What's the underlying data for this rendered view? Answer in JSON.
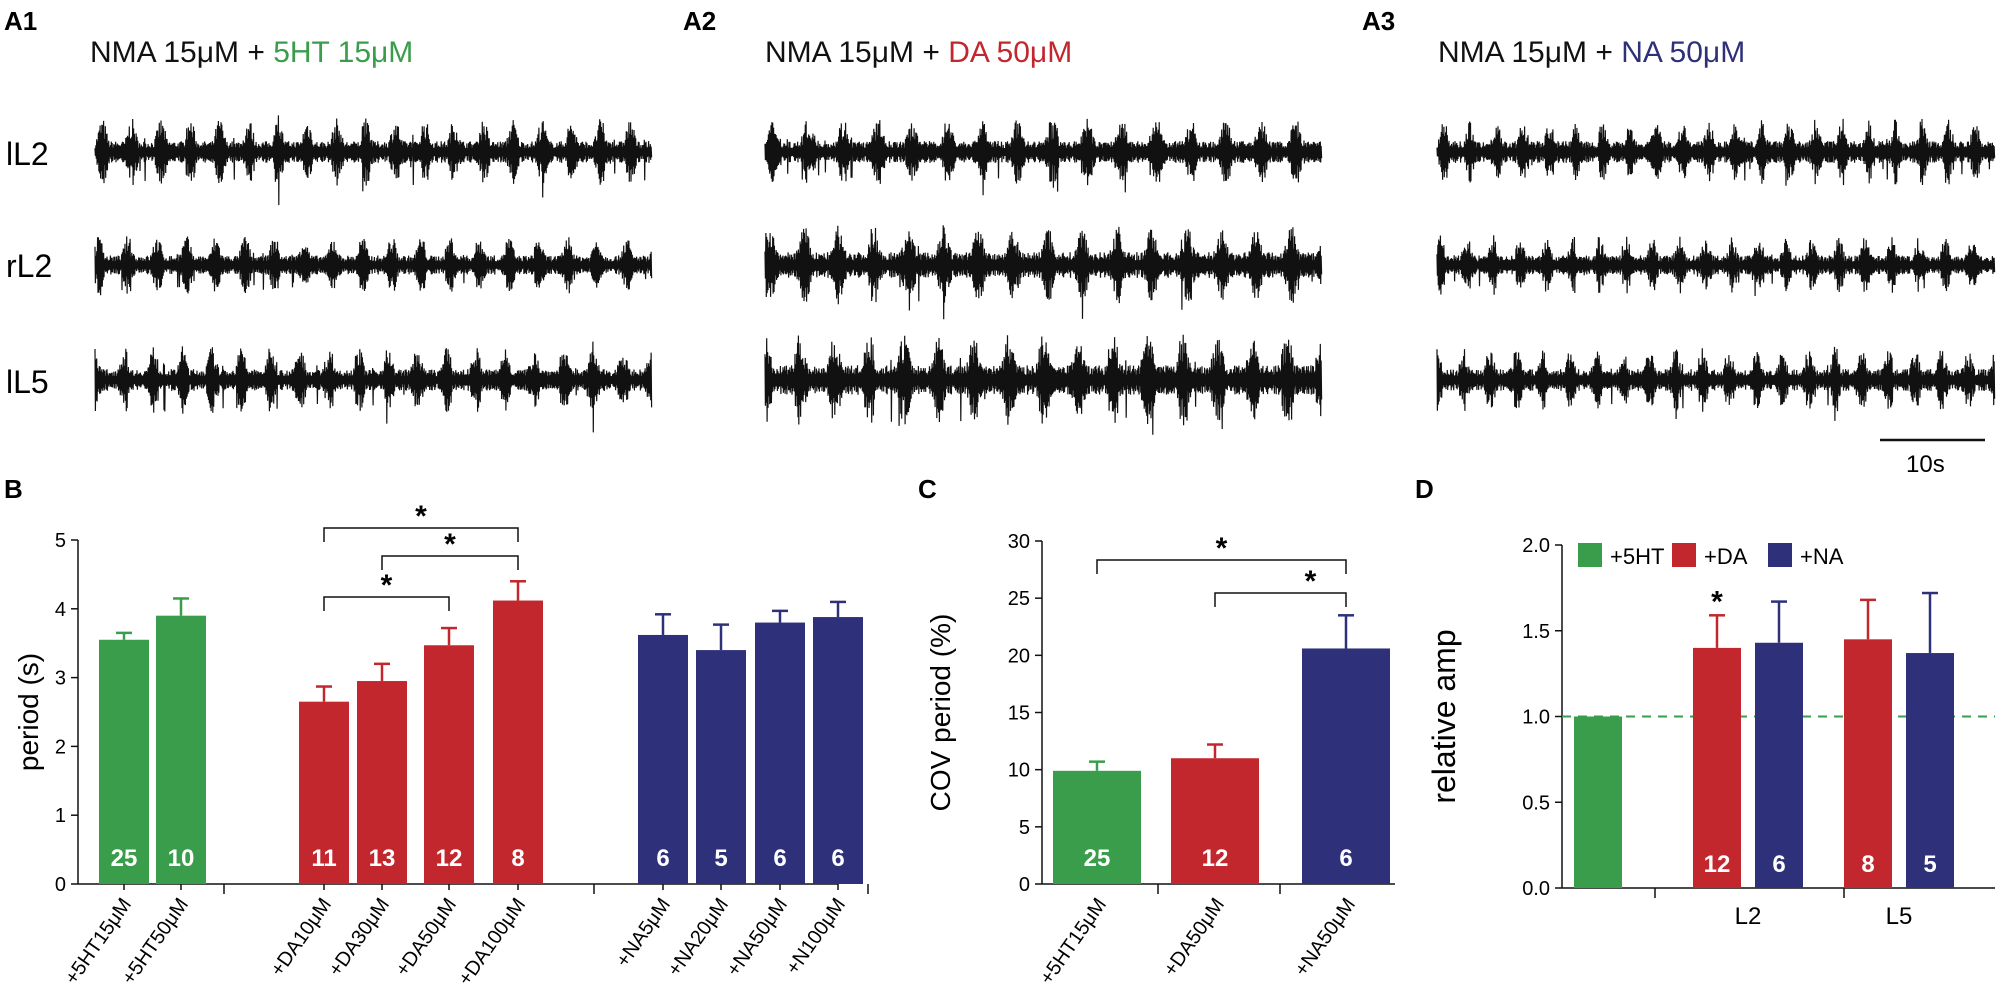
{
  "colors": {
    "green": "#3a9d4c",
    "red": "#c1272d",
    "blue": "#2e3179",
    "black": "#111111"
  },
  "panel_labels": {
    "a1": "A1",
    "a2": "A2",
    "a3": "A3",
    "b": "B",
    "c": "C",
    "d": "D"
  },
  "conditions": [
    {
      "base": "NMA 15μM + ",
      "drug": "5HT 15μM",
      "color": "green"
    },
    {
      "base": "NMA 15μM + ",
      "drug": "DA 50μM",
      "color": "red"
    },
    {
      "base": "NMA 15μM + ",
      "drug": "NA 50μM",
      "color": "blue"
    }
  ],
  "trace_labels": [
    "lL2",
    "rL2",
    "lL5"
  ],
  "scale_bar": {
    "label": "10s",
    "duration_s": 10
  },
  "chart_data": [
    {
      "id": "B",
      "type": "bar",
      "ylabel": "period (s)",
      "ylim": [
        0,
        5
      ],
      "yticks": [
        0,
        1,
        2,
        3,
        4,
        5
      ],
      "categories": [
        "+5HT15μM",
        "+5HT50μM",
        "+DA10μM",
        "+DA30μM",
        "+DA50μM",
        "+DA100μM",
        "+NA5μM",
        "+NA20μM",
        "+NA50μM",
        "+N100μM"
      ],
      "values": [
        3.55,
        3.9,
        2.65,
        2.95,
        3.47,
        4.12,
        3.62,
        3.4,
        3.8,
        3.88
      ],
      "errors": [
        0.1,
        0.25,
        0.22,
        0.25,
        0.25,
        0.28,
        0.3,
        0.37,
        0.17,
        0.22
      ],
      "n": [
        "25",
        "10",
        "11",
        "13",
        "12",
        "8",
        "6",
        "5",
        "6",
        "6"
      ],
      "bar_colors": [
        "green",
        "green",
        "red",
        "red",
        "red",
        "red",
        "blue",
        "blue",
        "blue",
        "blue"
      ],
      "significance": [
        {
          "from": 2,
          "to": 4,
          "label": "*"
        },
        {
          "from": 3,
          "to": 5,
          "label": "*"
        },
        {
          "from": 2,
          "to": 5,
          "label": "*"
        }
      ]
    },
    {
      "id": "C",
      "type": "bar",
      "ylabel": "COV period (%)",
      "ylim": [
        0,
        30
      ],
      "yticks": [
        0,
        5,
        10,
        15,
        20,
        25,
        30
      ],
      "categories": [
        "+5HT15μM",
        "+DA50μM",
        "+NA50μM"
      ],
      "values": [
        9.9,
        11.0,
        20.6
      ],
      "errors": [
        0.8,
        1.2,
        2.9
      ],
      "n": [
        "25",
        "12",
        "6"
      ],
      "bar_colors": [
        "green",
        "red",
        "blue"
      ],
      "significance": [
        {
          "from": 1,
          "to": 2,
          "label": "*"
        },
        {
          "from": 0,
          "to": 2,
          "label": "*"
        }
      ]
    },
    {
      "id": "D",
      "type": "bar",
      "ylabel": "relative amp",
      "ylim": [
        0,
        2
      ],
      "yticks": [
        "0.0",
        "0.5",
        "1.0",
        "1.5",
        "2.0"
      ],
      "groups": [
        "L2",
        "L5"
      ],
      "legend": [
        {
          "label": "+5HT",
          "color": "green"
        },
        {
          "label": "+DA",
          "color": "red"
        },
        {
          "label": "+NA",
          "color": "blue"
        }
      ],
      "reference_line": 1.0,
      "bars": [
        {
          "series": "+5HT",
          "group": "",
          "value": 1.0,
          "error": 0,
          "n": "",
          "color": "green"
        },
        {
          "series": "+DA",
          "group": "L2",
          "value": 1.4,
          "error": 0.19,
          "n": "12",
          "color": "red",
          "star": "*"
        },
        {
          "series": "+NA",
          "group": "L2",
          "value": 1.43,
          "error": 0.24,
          "n": "6",
          "color": "blue"
        },
        {
          "series": "+DA",
          "group": "L5",
          "value": 1.45,
          "error": 0.23,
          "n": "8",
          "color": "red"
        },
        {
          "series": "+NA",
          "group": "L5",
          "value": 1.37,
          "error": 0.35,
          "n": "5",
          "color": "blue"
        }
      ]
    }
  ]
}
